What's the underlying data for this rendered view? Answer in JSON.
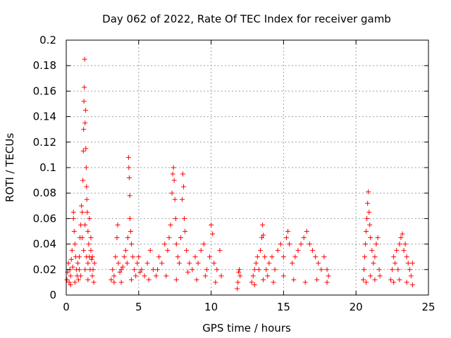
{
  "chart_data": {
    "type": "scatter",
    "title": "Day 062 of 2022, Rate Of TEC Index for receiver gamb",
    "xlabel": "GPS time / hours",
    "ylabel": "ROTI / TECUs",
    "xlim": [
      0,
      25
    ],
    "ylim": [
      0,
      0.2
    ],
    "xticks": [
      0,
      5,
      10,
      15,
      20,
      25
    ],
    "xtick_labels": [
      "0",
      "5",
      "10",
      "15",
      "20",
      "25"
    ],
    "yticks": [
      0,
      0.02,
      0.04,
      0.06,
      0.08,
      0.1,
      0.12,
      0.14,
      0.16,
      0.18,
      0.2
    ],
    "ytick_labels": [
      "0",
      "0.02",
      "0.04",
      "0.06",
      "0.08",
      "0.1",
      "0.12",
      "0.14",
      "0.16",
      "0.18",
      "0.2"
    ],
    "grid": true,
    "marker": "+",
    "marker_color": "#ff0000",
    "series": [
      {
        "points": [
          [
            0.05,
            0.012
          ],
          [
            0.1,
            0.018
          ],
          [
            0.15,
            0.025
          ],
          [
            0.2,
            0.01
          ],
          [
            0.25,
            0.02
          ],
          [
            0.3,
            0.015
          ],
          [
            0.35,
            0.028
          ],
          [
            0.4,
            0.035
          ],
          [
            0.45,
            0.022
          ],
          [
            0.5,
            0.06
          ],
          [
            0.5,
            0.065
          ],
          [
            0.55,
            0.05
          ],
          [
            0.6,
            0.04
          ],
          [
            0.65,
            0.03
          ],
          [
            0.7,
            0.02
          ],
          [
            0.75,
            0.015
          ],
          [
            0.8,
            0.025
          ],
          [
            0.85,
            0.012
          ],
          [
            0.9,
            0.03
          ],
          [
            0.95,
            0.045
          ],
          [
            1.0,
            0.055
          ],
          [
            1.05,
            0.07
          ],
          [
            1.1,
            0.065
          ],
          [
            1.15,
            0.09
          ],
          [
            1.18,
            0.113
          ],
          [
            1.2,
            0.13
          ],
          [
            1.22,
            0.152
          ],
          [
            1.25,
            0.163
          ],
          [
            1.27,
            0.185
          ],
          [
            1.3,
            0.135
          ],
          [
            1.33,
            0.145
          ],
          [
            1.35,
            0.115
          ],
          [
            1.38,
            0.1
          ],
          [
            1.4,
            0.085
          ],
          [
            1.42,
            0.075
          ],
          [
            1.45,
            0.065
          ],
          [
            1.5,
            0.05
          ],
          [
            1.55,
            0.04
          ],
          [
            1.6,
            0.03
          ],
          [
            1.65,
            0.02
          ],
          [
            1.7,
            0.035
          ],
          [
            1.75,
            0.028
          ],
          [
            1.8,
            0.015
          ],
          [
            1.85,
            0.02
          ],
          [
            1.9,
            0.01
          ],
          [
            1.95,
            0.025
          ],
          [
            1.1,
            0.045
          ],
          [
            1.2,
            0.035
          ],
          [
            1.3,
            0.055
          ],
          [
            1.4,
            0.03
          ],
          [
            1.5,
            0.025
          ],
          [
            1.6,
            0.06
          ],
          [
            1.7,
            0.045
          ],
          [
            0.3,
            0.008
          ],
          [
            0.6,
            0.01
          ],
          [
            0.9,
            0.02
          ],
          [
            1.0,
            0.015
          ],
          [
            1.3,
            0.02
          ],
          [
            1.5,
            0.012
          ],
          [
            1.8,
            0.03
          ],
          [
            3.1,
            0.012
          ],
          [
            3.2,
            0.02
          ],
          [
            3.3,
            0.015
          ],
          [
            3.4,
            0.03
          ],
          [
            3.5,
            0.045
          ],
          [
            3.55,
            0.055
          ],
          [
            3.6,
            0.025
          ],
          [
            3.7,
            0.018
          ],
          [
            3.8,
            0.01
          ],
          [
            3.9,
            0.022
          ],
          [
            4.0,
            0.03
          ],
          [
            4.1,
            0.035
          ],
          [
            4.2,
            0.025
          ],
          [
            4.25,
            0.045
          ],
          [
            4.3,
            0.108
          ],
          [
            4.32,
            0.1
          ],
          [
            4.35,
            0.092
          ],
          [
            4.38,
            0.078
          ],
          [
            4.4,
            0.06
          ],
          [
            4.45,
            0.05
          ],
          [
            4.5,
            0.04
          ],
          [
            4.6,
            0.03
          ],
          [
            4.7,
            0.02
          ],
          [
            4.8,
            0.015
          ],
          [
            4.9,
            0.025
          ],
          [
            5.0,
            0.03
          ],
          [
            5.2,
            0.02
          ],
          [
            5.4,
            0.015
          ],
          [
            5.6,
            0.025
          ],
          [
            5.8,
            0.035
          ],
          [
            6.0,
            0.02
          ],
          [
            6.2,
            0.015
          ],
          [
            6.4,
            0.03
          ],
          [
            6.6,
            0.025
          ],
          [
            6.8,
            0.04
          ],
          [
            7.0,
            0.035
          ],
          [
            7.1,
            0.045
          ],
          [
            7.2,
            0.055
          ],
          [
            7.3,
            0.08
          ],
          [
            7.35,
            0.095
          ],
          [
            7.4,
            0.1
          ],
          [
            7.45,
            0.09
          ],
          [
            7.5,
            0.075
          ],
          [
            7.55,
            0.06
          ],
          [
            7.6,
            0.04
          ],
          [
            7.7,
            0.03
          ],
          [
            7.8,
            0.025
          ],
          [
            7.9,
            0.045
          ],
          [
            8.0,
            0.075
          ],
          [
            8.05,
            0.095
          ],
          [
            8.1,
            0.085
          ],
          [
            8.15,
            0.06
          ],
          [
            8.2,
            0.05
          ],
          [
            8.3,
            0.035
          ],
          [
            8.5,
            0.025
          ],
          [
            8.7,
            0.02
          ],
          [
            8.9,
            0.03
          ],
          [
            9.1,
            0.025
          ],
          [
            9.3,
            0.035
          ],
          [
            9.5,
            0.04
          ],
          [
            9.7,
            0.02
          ],
          [
            9.9,
            0.03
          ],
          [
            10.0,
            0.055
          ],
          [
            10.1,
            0.048
          ],
          [
            10.2,
            0.025
          ],
          [
            10.4,
            0.02
          ],
          [
            10.6,
            0.035
          ],
          [
            10.7,
            0.015
          ],
          [
            3.3,
            0.01
          ],
          [
            3.8,
            0.02
          ],
          [
            4.5,
            0.012
          ],
          [
            5.1,
            0.018
          ],
          [
            5.7,
            0.012
          ],
          [
            6.3,
            0.02
          ],
          [
            6.9,
            0.015
          ],
          [
            7.6,
            0.012
          ],
          [
            8.4,
            0.018
          ],
          [
            9.0,
            0.012
          ],
          [
            9.6,
            0.015
          ],
          [
            10.3,
            0.01
          ],
          [
            11.8,
            0.005
          ],
          [
            11.85,
            0.01
          ],
          [
            11.9,
            0.018
          ],
          [
            11.95,
            0.02
          ],
          [
            12.0,
            0.015
          ],
          [
            12.8,
            0.01
          ],
          [
            12.9,
            0.015
          ],
          [
            13.0,
            0.02
          ],
          [
            13.1,
            0.025
          ],
          [
            13.2,
            0.03
          ],
          [
            13.3,
            0.02
          ],
          [
            13.4,
            0.035
          ],
          [
            13.5,
            0.045
          ],
          [
            13.55,
            0.055
          ],
          [
            13.6,
            0.047
          ],
          [
            13.7,
            0.03
          ],
          [
            13.8,
            0.02
          ],
          [
            13.9,
            0.015
          ],
          [
            14.0,
            0.025
          ],
          [
            14.2,
            0.03
          ],
          [
            14.4,
            0.02
          ],
          [
            14.6,
            0.035
          ],
          [
            14.8,
            0.04
          ],
          [
            15.0,
            0.03
          ],
          [
            15.2,
            0.045
          ],
          [
            15.3,
            0.05
          ],
          [
            15.4,
            0.04
          ],
          [
            15.6,
            0.025
          ],
          [
            15.8,
            0.03
          ],
          [
            16.0,
            0.035
          ],
          [
            16.2,
            0.04
          ],
          [
            16.4,
            0.045
          ],
          [
            16.6,
            0.05
          ],
          [
            16.8,
            0.04
          ],
          [
            17.0,
            0.035
          ],
          [
            17.2,
            0.03
          ],
          [
            17.4,
            0.025
          ],
          [
            17.6,
            0.02
          ],
          [
            17.8,
            0.03
          ],
          [
            18.0,
            0.02
          ],
          [
            18.1,
            0.015
          ],
          [
            13.0,
            0.008
          ],
          [
            13.6,
            0.012
          ],
          [
            14.3,
            0.01
          ],
          [
            15.0,
            0.015
          ],
          [
            15.7,
            0.012
          ],
          [
            16.5,
            0.01
          ],
          [
            17.3,
            0.012
          ],
          [
            18.0,
            0.01
          ],
          [
            20.5,
            0.012
          ],
          [
            20.55,
            0.02
          ],
          [
            20.6,
            0.03
          ],
          [
            20.65,
            0.04
          ],
          [
            20.7,
            0.05
          ],
          [
            20.75,
            0.06
          ],
          [
            20.8,
            0.072
          ],
          [
            20.85,
            0.081
          ],
          [
            20.9,
            0.065
          ],
          [
            20.95,
            0.055
          ],
          [
            21.0,
            0.045
          ],
          [
            21.1,
            0.035
          ],
          [
            21.2,
            0.025
          ],
          [
            21.3,
            0.03
          ],
          [
            21.4,
            0.04
          ],
          [
            21.5,
            0.045
          ],
          [
            21.6,
            0.02
          ],
          [
            21.65,
            0.015
          ],
          [
            20.7,
            0.01
          ],
          [
            21.0,
            0.015
          ],
          [
            21.3,
            0.012
          ],
          [
            22.4,
            0.012
          ],
          [
            22.5,
            0.02
          ],
          [
            22.6,
            0.03
          ],
          [
            22.7,
            0.025
          ],
          [
            22.8,
            0.035
          ],
          [
            22.9,
            0.02
          ],
          [
            23.0,
            0.04
          ],
          [
            23.1,
            0.045
          ],
          [
            23.2,
            0.048
          ],
          [
            23.3,
            0.035
          ],
          [
            23.4,
            0.04
          ],
          [
            23.5,
            0.03
          ],
          [
            23.6,
            0.025
          ],
          [
            23.7,
            0.02
          ],
          [
            23.8,
            0.015
          ],
          [
            23.9,
            0.025
          ],
          [
            22.6,
            0.01
          ],
          [
            23.0,
            0.012
          ],
          [
            23.5,
            0.01
          ],
          [
            23.9,
            0.008
          ]
        ]
      }
    ]
  }
}
